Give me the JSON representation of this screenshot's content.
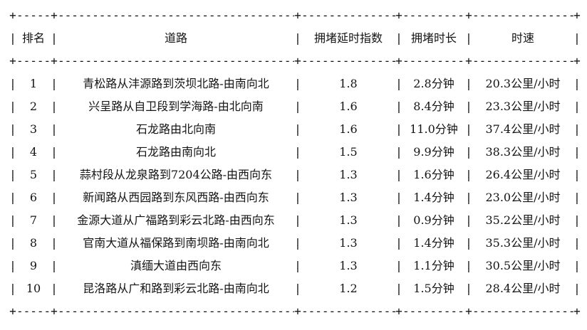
{
  "table": {
    "glyphs": {
      "pipe": "|",
      "corner": "+"
    },
    "border": {
      "rank": "------",
      "road": "-----------------------------------",
      "index": "--------------",
      "duration": "----------",
      "speed": "---------------"
    },
    "columns": [
      {
        "key": "rank",
        "label": "排名"
      },
      {
        "key": "road",
        "label": "道路"
      },
      {
        "key": "index",
        "label": "拥堵延时指数"
      },
      {
        "key": "duration",
        "label": "拥堵时长"
      },
      {
        "key": "speed",
        "label": "时速"
      }
    ],
    "rows": [
      {
        "rank": "1",
        "road": "青松路从沣源路到茨坝北路-由南向北",
        "index": "1.8",
        "duration": "2.8分钟",
        "speed": "20.3公里/小时"
      },
      {
        "rank": "2",
        "road": "兴呈路从自卫段到学海路-由北向南",
        "index": "1.6",
        "duration": "8.4分钟",
        "speed": "23.3公里/小时"
      },
      {
        "rank": "3",
        "road": "石龙路由北向南",
        "index": "1.6",
        "duration": "11.0分钟",
        "speed": "37.4公里/小时"
      },
      {
        "rank": "4",
        "road": "石龙路由南向北",
        "index": "1.5",
        "duration": "9.9分钟",
        "speed": "38.3公里/小时"
      },
      {
        "rank": "5",
        "road": "蒜村段从龙泉路到7204公路-由西向东",
        "index": "1.3",
        "duration": "1.6分钟",
        "speed": "26.4公里/小时"
      },
      {
        "rank": "6",
        "road": "新闻路从西园路到东风西路-由西向东",
        "index": "1.3",
        "duration": "1.4分钟",
        "speed": "23.0公里/小时"
      },
      {
        "rank": "7",
        "road": "金源大道从广福路到彩云北路-由西向东",
        "index": "1.3",
        "duration": "0.9分钟",
        "speed": "35.2公里/小时"
      },
      {
        "rank": "8",
        "road": "官南大道从福保路到南坝路-由南向北",
        "index": "1.3",
        "duration": "1.4分钟",
        "speed": "35.3公里/小时"
      },
      {
        "rank": "9",
        "road": "滇缅大道由西向东",
        "index": "1.3",
        "duration": "1.1分钟",
        "speed": "30.5公里/小时"
      },
      {
        "rank": "10",
        "road": "昆洛路从广和路到彩云北路-由南向北",
        "index": "1.2",
        "duration": "1.5分钟",
        "speed": "28.4公里/小时"
      }
    ]
  }
}
